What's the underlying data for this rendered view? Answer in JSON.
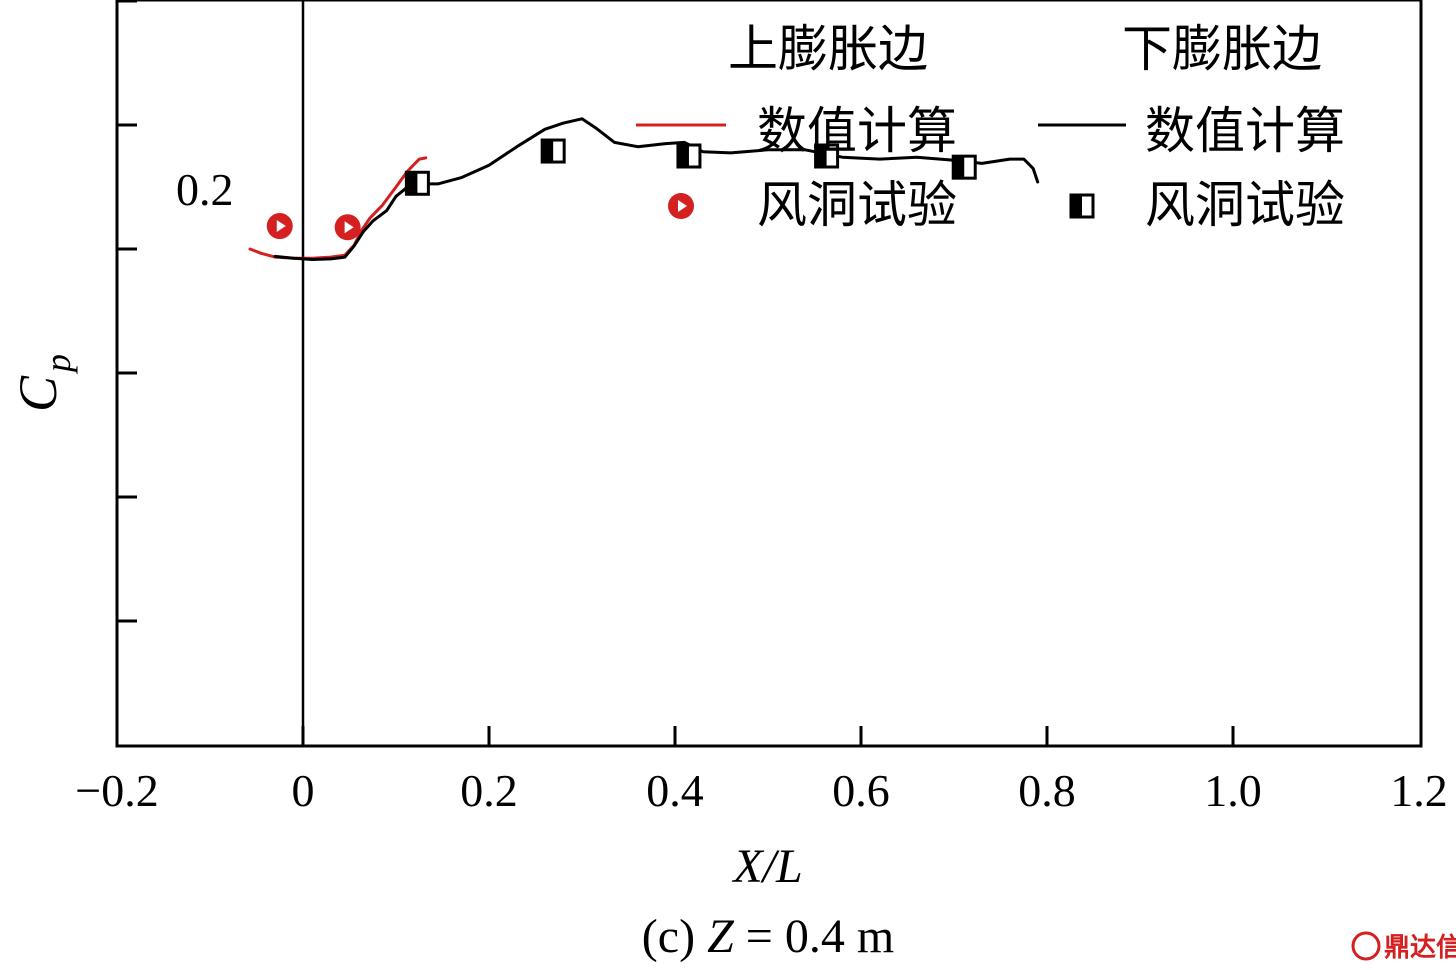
{
  "chart_data": {
    "type": "line",
    "caption_prefix": "(c) ",
    "caption_var": "Z",
    "caption_value": " = 0.4 m",
    "xlabel": "X/L",
    "ylabel_main": "C",
    "ylabel_sub": "p",
    "xlim": [
      -0.2,
      1.2
    ],
    "ylim": [
      -0.6,
      1.0
    ],
    "xticks": [
      -0.2,
      0,
      0.2,
      0.4,
      0.6,
      0.8,
      1.0,
      1.2
    ],
    "xtick_labels": [
      "−0.2",
      "0",
      "0.2",
      "0.4",
      "0.6",
      "0.8",
      "1.0",
      "1.2"
    ],
    "yticks": [
      -0.4,
      -0.2,
      0,
      0.2,
      0.4,
      0.6,
      0.8
    ],
    "scale_bar": {
      "label": "0.2",
      "y_from": 0.6,
      "y_to": 0.8
    },
    "legend": {
      "header_left": "上膨胀边",
      "header_right": "下膨胀边",
      "left_line_label": "数值计算",
      "right_line_label": "数值计算",
      "left_marker_label": "风洞试验",
      "right_marker_label": "风洞试验"
    },
    "series": [
      {
        "kind": "line",
        "color": "#d42020",
        "points": [
          [
            -0.057,
            0.2
          ],
          [
            -0.045,
            0.193
          ],
          [
            -0.03,
            0.187
          ],
          [
            -0.01,
            0.185
          ],
          [
            0.01,
            0.185
          ],
          [
            0.03,
            0.187
          ],
          [
            0.045,
            0.19
          ],
          [
            0.055,
            0.206
          ],
          [
            0.063,
            0.23
          ],
          [
            0.072,
            0.25
          ],
          [
            0.085,
            0.27
          ],
          [
            0.1,
            0.3
          ],
          [
            0.112,
            0.325
          ],
          [
            0.125,
            0.345
          ],
          [
            0.132,
            0.347
          ]
        ]
      },
      {
        "kind": "line",
        "color": "#000000",
        "points": [
          [
            -0.03,
            0.188
          ],
          [
            -0.01,
            0.185
          ],
          [
            0.01,
            0.183
          ],
          [
            0.03,
            0.184
          ],
          [
            0.045,
            0.187
          ],
          [
            0.055,
            0.205
          ],
          [
            0.065,
            0.228
          ],
          [
            0.075,
            0.245
          ],
          [
            0.09,
            0.262
          ],
          [
            0.1,
            0.285
          ],
          [
            0.115,
            0.303
          ],
          [
            0.125,
            0.305
          ],
          [
            0.145,
            0.305
          ],
          [
            0.17,
            0.315
          ],
          [
            0.2,
            0.335
          ],
          [
            0.23,
            0.365
          ],
          [
            0.26,
            0.393
          ],
          [
            0.28,
            0.403
          ],
          [
            0.3,
            0.41
          ],
          [
            0.315,
            0.395
          ],
          [
            0.335,
            0.372
          ],
          [
            0.36,
            0.365
          ],
          [
            0.39,
            0.37
          ],
          [
            0.41,
            0.372
          ],
          [
            0.43,
            0.357
          ],
          [
            0.46,
            0.355
          ],
          [
            0.5,
            0.36
          ],
          [
            0.54,
            0.36
          ],
          [
            0.58,
            0.348
          ],
          [
            0.62,
            0.345
          ],
          [
            0.66,
            0.348
          ],
          [
            0.7,
            0.343
          ],
          [
            0.73,
            0.338
          ],
          [
            0.76,
            0.345
          ],
          [
            0.775,
            0.345
          ],
          [
            0.785,
            0.33
          ],
          [
            0.79,
            0.308
          ]
        ]
      },
      {
        "kind": "marker",
        "marker": "circle-half",
        "color": "#d42020",
        "points": [
          [
            -0.025,
            0.237
          ],
          [
            0.048,
            0.235
          ]
        ]
      },
      {
        "kind": "marker",
        "marker": "square-half",
        "color": "#000000",
        "points": [
          [
            0.123,
            0.306
          ],
          [
            0.269,
            0.358
          ],
          [
            0.415,
            0.35
          ],
          [
            0.563,
            0.35
          ],
          [
            0.711,
            0.332
          ]
        ]
      }
    ]
  },
  "watermark": {
    "text": "鼎达信"
  }
}
